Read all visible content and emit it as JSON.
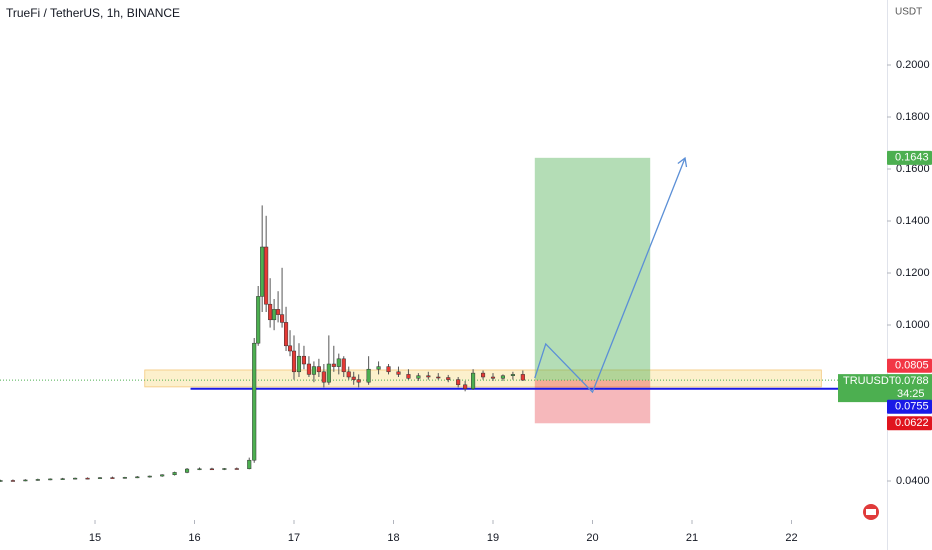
{
  "chart_data": {
    "type": "candlestick",
    "title": "TrueFi / TetherUS, 1h, BINANCE",
    "y_unit": "USDT",
    "xlim": [
      14.045,
      22.96
    ],
    "ylim": [
      0.025,
      0.225
    ],
    "xticks": [
      15,
      16,
      17,
      18,
      19,
      20,
      21,
      22
    ],
    "yticks": [
      {
        "value": 0.04,
        "label": "0.0400"
      },
      {
        "value": 0.1,
        "label": "0.1000"
      },
      {
        "value": 0.12,
        "label": "0.1200"
      },
      {
        "value": 0.14,
        "label": "0.1400"
      },
      {
        "value": 0.16,
        "label": "0.1600"
      },
      {
        "value": 0.18,
        "label": "0.1800"
      },
      {
        "value": 0.2,
        "label": "0.2000"
      }
    ],
    "up_color": "#4caf50",
    "down_color": "#e53935",
    "x": [
      14.05,
      14.175,
      14.3,
      14.425,
      14.55,
      14.675,
      14.8,
      14.925,
      15.05,
      15.175,
      15.3,
      15.425,
      15.55,
      15.675,
      15.8,
      15.925,
      16.05,
      16.175,
      16.3,
      16.425,
      16.55,
      16.6,
      16.64,
      16.68,
      16.72,
      16.76,
      16.8,
      16.84,
      16.88,
      16.92,
      16.96,
      17.0,
      17.05,
      17.1,
      17.15,
      17.2,
      17.25,
      17.3,
      17.35,
      17.4,
      17.45,
      17.5,
      17.55,
      17.6,
      17.65,
      17.75,
      17.85,
      17.95,
      18.05,
      18.15,
      18.25,
      18.35,
      18.45,
      18.55,
      18.65,
      18.72,
      18.8,
      18.9,
      19.0,
      19.1,
      19.2,
      19.3
    ],
    "open": [
      0.04,
      0.0402,
      0.0401,
      0.0404,
      0.0406,
      0.0408,
      0.0409,
      0.0411,
      0.041,
      0.0413,
      0.0412,
      0.0414,
      0.0416,
      0.0419,
      0.0424,
      0.0433,
      0.0446,
      0.0447,
      0.0445,
      0.0448,
      0.0447,
      0.048,
      0.093,
      0.111,
      0.13,
      0.108,
      0.102,
      0.106,
      0.104,
      0.101,
      0.092,
      0.09,
      0.082,
      0.088,
      0.085,
      0.081,
      0.084,
      0.082,
      0.078,
      0.085,
      0.084,
      0.087,
      0.082,
      0.08,
      0.079,
      0.078,
      0.083,
      0.084,
      0.082,
      0.081,
      0.0795,
      0.0805,
      0.08,
      0.0798,
      0.079,
      0.077,
      0.0755,
      0.0815,
      0.08,
      0.0795,
      0.0805,
      0.081
    ],
    "high": [
      0.0405,
      0.0406,
      0.0407,
      0.0409,
      0.041,
      0.0412,
      0.0413,
      0.0414,
      0.0415,
      0.0417,
      0.0416,
      0.0419,
      0.0421,
      0.0426,
      0.0436,
      0.045,
      0.0452,
      0.0451,
      0.045,
      0.0452,
      0.049,
      0.095,
      0.115,
      0.146,
      0.142,
      0.118,
      0.11,
      0.113,
      0.122,
      0.107,
      0.098,
      0.096,
      0.093,
      0.092,
      0.088,
      0.086,
      0.087,
      0.085,
      0.096,
      0.092,
      0.089,
      0.088,
      0.084,
      0.082,
      0.081,
      0.088,
      0.086,
      0.085,
      0.084,
      0.083,
      0.0815,
      0.082,
      0.0815,
      0.0808,
      0.08,
      0.0785,
      0.083,
      0.0825,
      0.0815,
      0.081,
      0.082,
      0.0825
    ],
    "low": [
      0.0397,
      0.0399,
      0.0399,
      0.0401,
      0.0403,
      0.0405,
      0.0406,
      0.0407,
      0.0408,
      0.041,
      0.0409,
      0.0411,
      0.0413,
      0.0416,
      0.0421,
      0.043,
      0.0442,
      0.0443,
      0.0442,
      0.0444,
      0.0445,
      0.047,
      0.092,
      0.105,
      0.105,
      0.099,
      0.098,
      0.101,
      0.099,
      0.09,
      0.088,
      0.079,
      0.08,
      0.083,
      0.08,
      0.078,
      0.08,
      0.076,
      0.077,
      0.082,
      0.081,
      0.08,
      0.079,
      0.077,
      0.076,
      0.077,
      0.081,
      0.081,
      0.08,
      0.079,
      0.0785,
      0.079,
      0.079,
      0.078,
      0.076,
      0.0745,
      0.075,
      0.079,
      0.0785,
      0.0785,
      0.079,
      0.0785
    ],
    "close": [
      0.0402,
      0.0401,
      0.0404,
      0.0406,
      0.0408,
      0.0409,
      0.0411,
      0.041,
      0.0413,
      0.0412,
      0.0414,
      0.0416,
      0.0419,
      0.0424,
      0.0433,
      0.0446,
      0.0447,
      0.0445,
      0.0448,
      0.0447,
      0.048,
      0.093,
      0.111,
      0.13,
      0.108,
      0.102,
      0.106,
      0.104,
      0.101,
      0.092,
      0.09,
      0.082,
      0.088,
      0.085,
      0.081,
      0.084,
      0.082,
      0.078,
      0.085,
      0.084,
      0.087,
      0.082,
      0.08,
      0.079,
      0.078,
      0.083,
      0.084,
      0.082,
      0.081,
      0.0795,
      0.0805,
      0.08,
      0.0798,
      0.079,
      0.077,
      0.0755,
      0.0815,
      0.08,
      0.0795,
      0.0805,
      0.081,
      0.0788
    ],
    "zone": {
      "x": [
        15.5,
        22.3
      ],
      "values": [
        0.0827,
        0.0762
      ],
      "color": "#fbe9b7"
    },
    "support": {
      "value": 0.0755,
      "x_start": 15.96,
      "color": "#1a1ae6"
    },
    "position": {
      "x": [
        19.42,
        20.58
      ],
      "entry": 0.0788,
      "target": 0.1643,
      "stop": 0.0622,
      "target_color": "#4caf50",
      "stop_color": "#e0141e"
    },
    "marker_label": {
      "value": 0.0805,
      "color": "#f23645"
    },
    "last_price": {
      "symbol": "TRUUSDT",
      "value": 0.0788,
      "countdown": "34:25",
      "color": "#4caf50"
    },
    "projection": {
      "x": [
        19.42,
        19.53,
        20.0,
        20.93
      ],
      "values": [
        0.0796,
        0.0927,
        0.0742,
        0.1642
      ],
      "color": "#5b8fd6"
    }
  }
}
